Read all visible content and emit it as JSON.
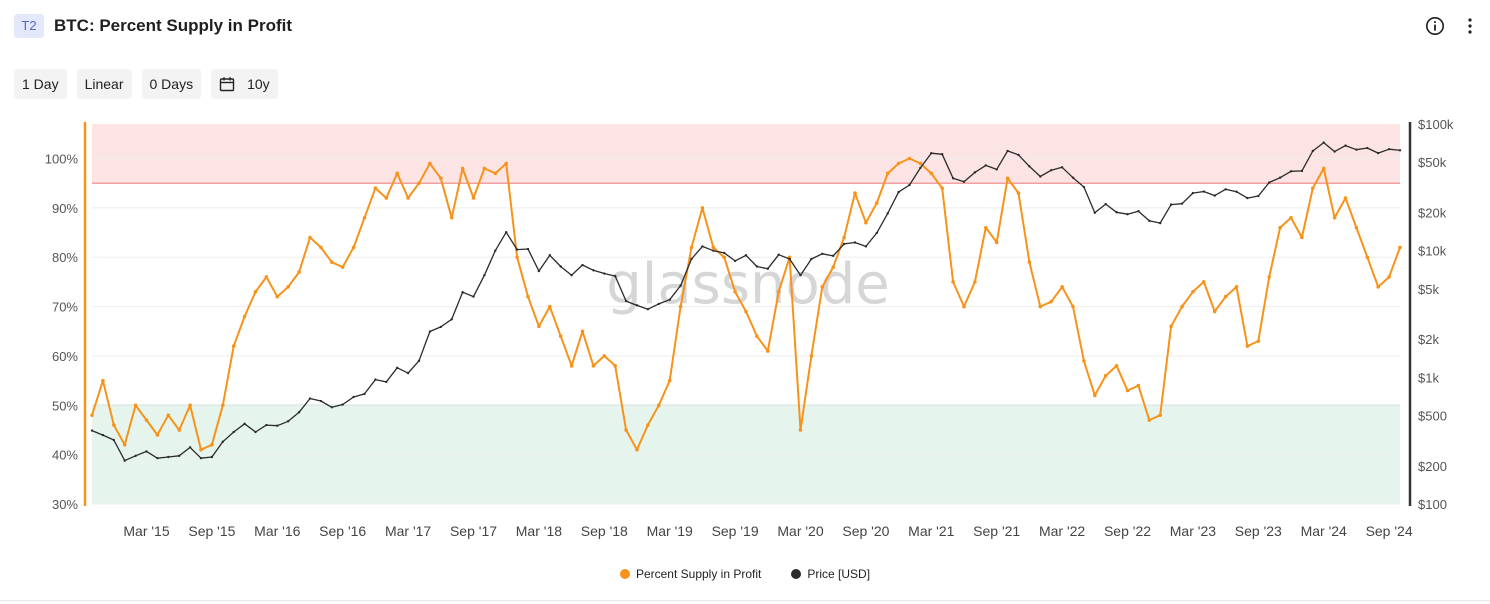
{
  "header": {
    "badge": "T2",
    "title": "BTC: Percent Supply in Profit",
    "info_icon": "info-circle-icon",
    "more_icon": "vertical-dots-icon"
  },
  "toolbar": {
    "resolution": "1 Day",
    "scale": "Linear",
    "sma": "0 Days",
    "range": "10y",
    "calendar_icon": "calendar-icon"
  },
  "watermark": "glassnode",
  "legend": {
    "series1": "Percent Supply in Profit",
    "series2": "Price [USD]"
  },
  "colors": {
    "supply": "#f7931a",
    "price": "#2b2b2b",
    "upper_band": "#fde4e4",
    "upper_line": "#f0a0a0",
    "lower_band": "#e5f5ee",
    "lower_line": "#b6dcc8",
    "left_axis": "#f7931a",
    "right_axis": "#333333"
  },
  "chart_data": {
    "type": "line",
    "x_ticks": [
      "Mar '15",
      "Sep '15",
      "Mar '16",
      "Sep '16",
      "Mar '17",
      "Sep '17",
      "Mar '18",
      "Sep '18",
      "Mar '19",
      "Sep '19",
      "Mar '20",
      "Sep '20",
      "Mar '21",
      "Sep '21",
      "Mar '22",
      "Sep '22",
      "Mar '23",
      "Sep '23",
      "Mar '24",
      "Sep '24"
    ],
    "x_range": [
      "Oct '14",
      "Oct '24"
    ],
    "y_left": {
      "ticks": [
        "30%",
        "40%",
        "50%",
        "60%",
        "70%",
        "80%",
        "90%",
        "100%"
      ],
      "range": [
        30,
        107
      ]
    },
    "y_right": {
      "ticks": [
        "$100",
        "$200",
        "$500",
        "$1k",
        "$2k",
        "$5k",
        "$10k",
        "$20k",
        "$50k",
        "$100k"
      ],
      "scale": "log",
      "range": [
        100,
        100000
      ]
    },
    "bands": [
      {
        "from": 95,
        "to": 107,
        "axis": "left"
      },
      {
        "from": 30,
        "to": 50,
        "axis": "left"
      }
    ],
    "series": [
      {
        "name": "Percent Supply in Profit",
        "axis": "left",
        "points": [
          [
            "Oct '14",
            48
          ],
          [
            "Nov '14",
            55
          ],
          [
            "Dec '14",
            46
          ],
          [
            "Jan '15",
            42
          ],
          [
            "Feb '15",
            50
          ],
          [
            "Mar '15",
            47
          ],
          [
            "Apr '15",
            44
          ],
          [
            "May '15",
            48
          ],
          [
            "Jun '15",
            45
          ],
          [
            "Jul '15",
            50
          ],
          [
            "Aug '15",
            41
          ],
          [
            "Sep '15",
            42
          ],
          [
            "Oct '15",
            50
          ],
          [
            "Nov '15",
            62
          ],
          [
            "Dec '15",
            68
          ],
          [
            "Jan '16",
            73
          ],
          [
            "Feb '16",
            76
          ],
          [
            "Mar '16",
            72
          ],
          [
            "Apr '16",
            74
          ],
          [
            "May '16",
            77
          ],
          [
            "Jun '16",
            84
          ],
          [
            "Jul '16",
            82
          ],
          [
            "Aug '16",
            79
          ],
          [
            "Sep '16",
            78
          ],
          [
            "Oct '16",
            82
          ],
          [
            "Nov '16",
            88
          ],
          [
            "Dec '16",
            94
          ],
          [
            "Jan '17",
            92
          ],
          [
            "Feb '17",
            97
          ],
          [
            "Mar '17",
            92
          ],
          [
            "Apr '17",
            95
          ],
          [
            "May '17",
            99
          ],
          [
            "Jun '17",
            96
          ],
          [
            "Jul '17",
            88
          ],
          [
            "Aug '17",
            98
          ],
          [
            "Sep '17",
            92
          ],
          [
            "Oct '17",
            98
          ],
          [
            "Nov '17",
            97
          ],
          [
            "Dec '17",
            99
          ],
          [
            "Jan '18",
            80
          ],
          [
            "Feb '18",
            72
          ],
          [
            "Mar '18",
            66
          ],
          [
            "Apr '18",
            70
          ],
          [
            "May '18",
            64
          ],
          [
            "Jun '18",
            58
          ],
          [
            "Jul '18",
            65
          ],
          [
            "Aug '18",
            58
          ],
          [
            "Sep '18",
            60
          ],
          [
            "Oct '18",
            58
          ],
          [
            "Nov '18",
            45
          ],
          [
            "Dec '18",
            41
          ],
          [
            "Jan '19",
            46
          ],
          [
            "Feb '19",
            50
          ],
          [
            "Mar '19",
            55
          ],
          [
            "Apr '19",
            70
          ],
          [
            "May '19",
            82
          ],
          [
            "Jun '19",
            90
          ],
          [
            "Jul '19",
            82
          ],
          [
            "Aug '19",
            80
          ],
          [
            "Sep '19",
            73
          ],
          [
            "Oct '19",
            69
          ],
          [
            "Nov '19",
            64
          ],
          [
            "Dec '19",
            61
          ],
          [
            "Jan '20",
            73
          ],
          [
            "Feb '20",
            80
          ],
          [
            "Mar '20",
            45
          ],
          [
            "Apr '20",
            60
          ],
          [
            "May '20",
            74
          ],
          [
            "Jun '20",
            78
          ],
          [
            "Jul '20",
            84
          ],
          [
            "Aug '20",
            93
          ],
          [
            "Sep '20",
            87
          ],
          [
            "Oct '20",
            91
          ],
          [
            "Nov '20",
            97
          ],
          [
            "Dec '20",
            99
          ],
          [
            "Jan '21",
            100
          ],
          [
            "Feb '21",
            99
          ],
          [
            "Mar '21",
            97
          ],
          [
            "Apr '21",
            94
          ],
          [
            "May '21",
            75
          ],
          [
            "Jun '21",
            70
          ],
          [
            "Jul '21",
            75
          ],
          [
            "Aug '21",
            86
          ],
          [
            "Sep '21",
            83
          ],
          [
            "Oct '21",
            96
          ],
          [
            "Nov '21",
            93
          ],
          [
            "Dec '21",
            79
          ],
          [
            "Jan '22",
            70
          ],
          [
            "Feb '22",
            71
          ],
          [
            "Mar '22",
            74
          ],
          [
            "Apr '22",
            70
          ],
          [
            "May '22",
            59
          ],
          [
            "Jun '22",
            52
          ],
          [
            "Jul '22",
            56
          ],
          [
            "Aug '22",
            58
          ],
          [
            "Sep '22",
            53
          ],
          [
            "Oct '22",
            54
          ],
          [
            "Nov '22",
            47
          ],
          [
            "Dec '22",
            48
          ],
          [
            "Jan '23",
            66
          ],
          [
            "Feb '23",
            70
          ],
          [
            "Mar '23",
            73
          ],
          [
            "Apr '23",
            75
          ],
          [
            "May '23",
            69
          ],
          [
            "Jun '23",
            72
          ],
          [
            "Jul '23",
            74
          ],
          [
            "Aug '23",
            62
          ],
          [
            "Sep '23",
            63
          ],
          [
            "Oct '23",
            76
          ],
          [
            "Nov '23",
            86
          ],
          [
            "Dec '23",
            88
          ],
          [
            "Jan '24",
            84
          ],
          [
            "Feb '24",
            94
          ],
          [
            "Mar '24",
            98
          ],
          [
            "Apr '24",
            88
          ],
          [
            "May '24",
            92
          ],
          [
            "Jun '24",
            86
          ],
          [
            "Jul '24",
            80
          ],
          [
            "Aug '24",
            74
          ],
          [
            "Sep '24",
            76
          ],
          [
            "Oct '24",
            82
          ]
        ]
      },
      {
        "name": "Price [USD]",
        "axis": "right",
        "points": [
          [
            "Oct '14",
            380
          ],
          [
            "Nov '14",
            350
          ],
          [
            "Dec '14",
            320
          ],
          [
            "Jan '15",
            220
          ],
          [
            "Feb '15",
            240
          ],
          [
            "Mar '15",
            260
          ],
          [
            "Apr '15",
            230
          ],
          [
            "May '15",
            235
          ],
          [
            "Jun '15",
            240
          ],
          [
            "Jul '15",
            280
          ],
          [
            "Aug '15",
            230
          ],
          [
            "Sep '15",
            235
          ],
          [
            "Oct '15",
            310
          ],
          [
            "Nov '15",
            370
          ],
          [
            "Dec '15",
            430
          ],
          [
            "Jan '16",
            370
          ],
          [
            "Feb '16",
            420
          ],
          [
            "Mar '16",
            415
          ],
          [
            "Apr '16",
            450
          ],
          [
            "May '16",
            530
          ],
          [
            "Jun '16",
            680
          ],
          [
            "Jul '16",
            650
          ],
          [
            "Aug '16",
            580
          ],
          [
            "Sep '16",
            610
          ],
          [
            "Oct '16",
            700
          ],
          [
            "Nov '16",
            740
          ],
          [
            "Dec '16",
            960
          ],
          [
            "Jan '17",
            920
          ],
          [
            "Feb '17",
            1190
          ],
          [
            "Mar '17",
            1080
          ],
          [
            "Apr '17",
            1350
          ],
          [
            "May '17",
            2300
          ],
          [
            "Jun '17",
            2500
          ],
          [
            "Jul '17",
            2870
          ],
          [
            "Aug '17",
            4700
          ],
          [
            "Sep '17",
            4340
          ],
          [
            "Oct '17",
            6400
          ],
          [
            "Nov '17",
            10000
          ],
          [
            "Dec '17",
            14000
          ],
          [
            "Jan '18",
            10200
          ],
          [
            "Feb '18",
            10300
          ],
          [
            "Mar '18",
            6900
          ],
          [
            "Apr '18",
            9200
          ],
          [
            "May '18",
            7500
          ],
          [
            "Jun '18",
            6400
          ],
          [
            "Jul '18",
            7700
          ],
          [
            "Aug '18",
            7000
          ],
          [
            "Sep '18",
            6600
          ],
          [
            "Oct '18",
            6300
          ],
          [
            "Nov '18",
            4000
          ],
          [
            "Dec '18",
            3700
          ],
          [
            "Jan '19",
            3450
          ],
          [
            "Feb '19",
            3800
          ],
          [
            "Mar '19",
            4100
          ],
          [
            "Apr '19",
            5300
          ],
          [
            "May '19",
            8600
          ],
          [
            "Jun '19",
            10800
          ],
          [
            "Jul '19",
            10000
          ],
          [
            "Aug '19",
            9600
          ],
          [
            "Sep '19",
            8300
          ],
          [
            "Oct '19",
            9200
          ],
          [
            "Nov '19",
            7500
          ],
          [
            "Dec '19",
            7200
          ],
          [
            "Jan '20",
            9300
          ],
          [
            "Feb '20",
            8600
          ],
          [
            "Mar '20",
            6400
          ],
          [
            "Apr '20",
            8600
          ],
          [
            "May '20",
            9450
          ],
          [
            "Jun '20",
            9100
          ],
          [
            "Jul '20",
            11300
          ],
          [
            "Aug '20",
            11600
          ],
          [
            "Sep '20",
            10800
          ],
          [
            "Oct '20",
            13800
          ],
          [
            "Nov '20",
            19700
          ],
          [
            "Dec '20",
            29000
          ],
          [
            "Jan '21",
            33000
          ],
          [
            "Feb '21",
            45000
          ],
          [
            "Mar '21",
            58800
          ],
          [
            "Apr '21",
            57700
          ],
          [
            "May '21",
            37300
          ],
          [
            "Jun '21",
            35000
          ],
          [
            "Jul '21",
            41500
          ],
          [
            "Aug '21",
            47100
          ],
          [
            "Sep '21",
            43800
          ],
          [
            "Oct '21",
            61300
          ],
          [
            "Nov '21",
            57000
          ],
          [
            "Dec '21",
            46300
          ],
          [
            "Jan '22",
            38500
          ],
          [
            "Feb '22",
            43200
          ],
          [
            "Mar '22",
            45500
          ],
          [
            "Apr '22",
            37700
          ],
          [
            "May '22",
            31800
          ],
          [
            "Jun '22",
            19900
          ],
          [
            "Jul '22",
            23300
          ],
          [
            "Aug '22",
            20100
          ],
          [
            "Sep '22",
            19400
          ],
          [
            "Oct '22",
            20500
          ],
          [
            "Nov '22",
            17200
          ],
          [
            "Dec '22",
            16500
          ],
          [
            "Jan '23",
            23100
          ],
          [
            "Feb '23",
            23500
          ],
          [
            "Mar '23",
            28500
          ],
          [
            "Apr '23",
            29300
          ],
          [
            "May '23",
            27200
          ],
          [
            "Jun '23",
            30500
          ],
          [
            "Jul '23",
            29200
          ],
          [
            "Aug '23",
            26000
          ],
          [
            "Sep '23",
            27000
          ],
          [
            "Oct '23",
            34500
          ],
          [
            "Nov '23",
            37700
          ],
          [
            "Dec '23",
            42300
          ],
          [
            "Jan '24",
            42600
          ],
          [
            "Feb '24",
            61200
          ],
          [
            "Mar '24",
            71300
          ],
          [
            "Apr '24",
            60600
          ],
          [
            "May '24",
            67500
          ],
          [
            "Jun '24",
            62700
          ],
          [
            "Jul '24",
            64600
          ],
          [
            "Aug '24",
            58900
          ],
          [
            "Sep '24",
            63300
          ],
          [
            "Oct '24",
            62000
          ]
        ]
      }
    ],
    "grid": "horizontal",
    "legend_position": "bottom-center"
  }
}
